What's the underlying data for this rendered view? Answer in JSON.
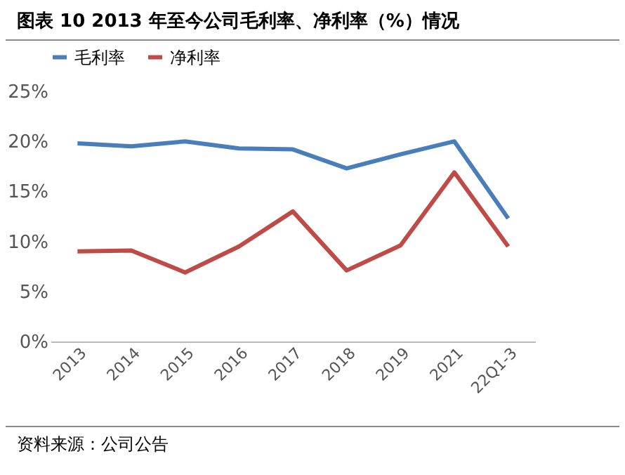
{
  "chart_data": {
    "type": "line",
    "title": "图表 10 2013 年至今公司毛利率、净利率（%）情况",
    "categories": [
      "2013",
      "2014",
      "2015",
      "2016",
      "2017",
      "2018",
      "2019",
      "2021",
      "22Q1-3"
    ],
    "series": [
      {
        "name": "毛利率",
        "color": "#4a7ebb",
        "values": [
          19.8,
          19.5,
          20.0,
          19.3,
          19.2,
          17.3,
          18.7,
          20.0,
          12.3
        ]
      },
      {
        "name": "净利率",
        "color": "#be4b48",
        "values": [
          9.0,
          9.1,
          6.9,
          9.5,
          13.0,
          7.1,
          9.6,
          16.9,
          9.5
        ]
      }
    ],
    "ylim": [
      0,
      25
    ],
    "yticks": [
      {
        "value": 0,
        "label": "0%"
      },
      {
        "value": 5,
        "label": "5%"
      },
      {
        "value": 10,
        "label": "10%"
      },
      {
        "value": 15,
        "label": "15%"
      },
      {
        "value": 20,
        "label": "20%"
      },
      {
        "value": 25,
        "label": "25%"
      }
    ],
    "grid": false,
    "legend": "top",
    "marker": "none",
    "line_style": "solid",
    "annotations": [
      "资料来源：公司公告"
    ]
  }
}
